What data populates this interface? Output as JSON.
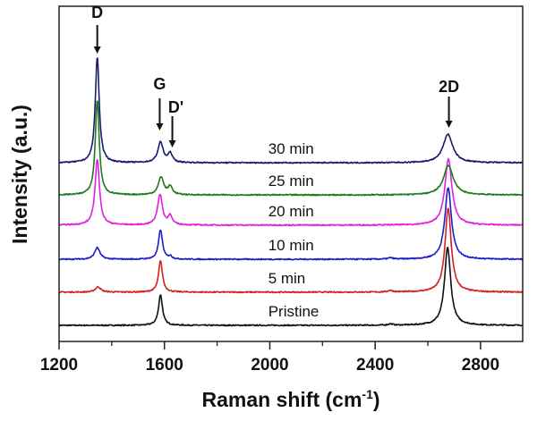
{
  "chart_data": {
    "type": "line",
    "title": "",
    "xlabel": "Raman shift (cm",
    "xlabel_sup": "-1",
    "xlabel_suffix": ")",
    "ylabel": "Intensity (a.u.)",
    "xlim": [
      1200,
      2960
    ],
    "ylim": [
      0,
      100
    ],
    "x_ticks": [
      1200,
      1600,
      2000,
      2400,
      2800
    ],
    "x_minor_ticks": [
      1400,
      1800,
      2200,
      2600
    ],
    "y_ticks": [],
    "grid": false,
    "legend": "none",
    "peak_annotations": [
      {
        "label": "D",
        "x": 1345
      },
      {
        "label": "G",
        "x": 1582
      },
      {
        "label": "D'",
        "x": 1630
      },
      {
        "label": "2D",
        "x": 2680
      }
    ],
    "series": [
      {
        "name": "Pristine",
        "color": "#111111",
        "offset": 4.8,
        "peaks": [
          {
            "x": 1585,
            "height": 9.1,
            "width": 9
          },
          {
            "x": 2675,
            "height": 23.2,
            "width": 14
          },
          {
            "x": 2458,
            "height": 0.4,
            "width": 10
          }
        ]
      },
      {
        "name": "5 min",
        "color": "#d42020",
        "offset": 14.7,
        "peaks": [
          {
            "x": 1348,
            "height": 1.6,
            "width": 12
          },
          {
            "x": 1585,
            "height": 9.3,
            "width": 9
          },
          {
            "x": 2677,
            "height": 25.0,
            "width": 14
          },
          {
            "x": 2458,
            "height": 0.5,
            "width": 10
          }
        ]
      },
      {
        "name": "10 min",
        "color": "#1c1cc8",
        "offset": 24.5,
        "peaks": [
          {
            "x": 1345,
            "height": 3.5,
            "width": 12
          },
          {
            "x": 1585,
            "height": 8.8,
            "width": 9
          },
          {
            "x": 1622,
            "height": 0.8,
            "width": 8
          },
          {
            "x": 2677,
            "height": 21.3,
            "width": 15
          },
          {
            "x": 2458,
            "height": 0.4,
            "width": 10
          }
        ]
      },
      {
        "name": "20 min",
        "color": "#e020e0",
        "offset": 34.7,
        "peaks": [
          {
            "x": 1345,
            "height": 19.7,
            "width": 10
          },
          {
            "x": 1583,
            "height": 9.1,
            "width": 11
          },
          {
            "x": 1622,
            "height": 2.7,
            "width": 9
          },
          {
            "x": 2678,
            "height": 19.7,
            "width": 16
          }
        ]
      },
      {
        "name": "25 min",
        "color": "#1f7a1f",
        "offset": 43.7,
        "peaks": [
          {
            "x": 1345,
            "height": 28.3,
            "width": 9
          },
          {
            "x": 1587,
            "height": 5.3,
            "width": 12
          },
          {
            "x": 1622,
            "height": 2.4,
            "width": 10
          },
          {
            "x": 2678,
            "height": 8.8,
            "width": 22
          }
        ]
      },
      {
        "name": "30 min",
        "color": "#1a1a6e",
        "offset": 53.3,
        "peaks": [
          {
            "x": 1345,
            "height": 31.5,
            "width": 9
          },
          {
            "x": 1585,
            "height": 6.1,
            "width": 12
          },
          {
            "x": 1622,
            "height": 2.7,
            "width": 10
          },
          {
            "x": 2676,
            "height": 8.5,
            "width": 22
          }
        ]
      }
    ]
  }
}
